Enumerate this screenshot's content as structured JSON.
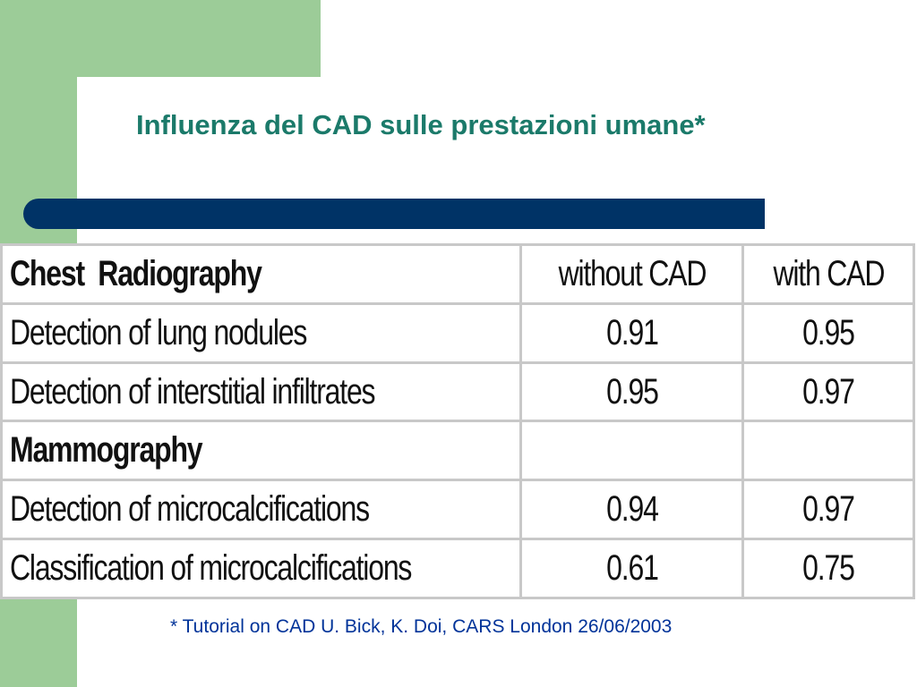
{
  "slide": {
    "title": "Influenza del CAD sulle prestazioni umane*",
    "footnote": "* Tutorial on CAD U. Bick, K. Doi, CARS London 26/06/2003",
    "colors": {
      "accent_green": "#9ccc98",
      "title_teal": "#1b7a6a",
      "bar_navy": "#003366",
      "footnote_blue": "#003399"
    }
  },
  "table": {
    "header": {
      "section": "Chest  Radiography",
      "without": "without CAD",
      "with": "with CAD"
    },
    "rows": [
      {
        "label": "Detection of lung nodules",
        "without": "0.91",
        "with": "0.95"
      },
      {
        "label": "Detection of interstitial infiltrates",
        "without": "0.95",
        "with": "0.97"
      },
      {
        "label": "Mammography",
        "without": "",
        "with": ""
      },
      {
        "label": "Detection of microcalcifications",
        "without": "0.94",
        "with": "0.97"
      },
      {
        "label": "Classification of microcalcifications",
        "without": "0.61",
        "with": "0.75"
      }
    ]
  }
}
